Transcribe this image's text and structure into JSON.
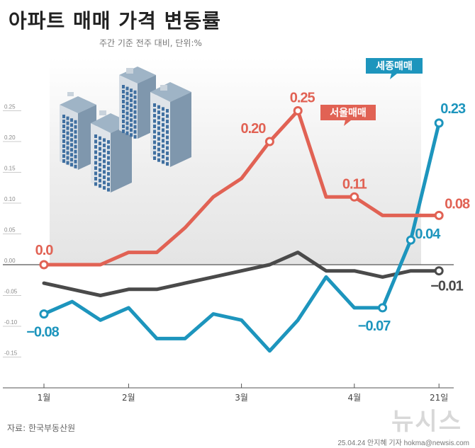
{
  "header": {
    "title": "아파트 매매 가격 변동률",
    "subtitle": "주간 기준 전주 대비, 단위:%"
  },
  "footer": {
    "source": "자료: 한국부동산원",
    "byline": "25.04.24 안지혜 기자 hokma@newsis.com",
    "watermark": "뉴시스"
  },
  "colors": {
    "seoul": "#e16254",
    "sejong": "#1d95bd",
    "national": "#4a4a4a"
  },
  "chart_data": {
    "type": "line",
    "title": "아파트 매매 가격 변동률",
    "subtitle": "주간 기준 전주 대비, 단위:%",
    "x": [
      1,
      2,
      3,
      4,
      5,
      6,
      7,
      8,
      9,
      10,
      11,
      12,
      13,
      14,
      15
    ],
    "x_tick_labels": [
      {
        "x": 1,
        "label": "1월"
      },
      {
        "x": 4,
        "label": "2월"
      },
      {
        "x": 8,
        "label": "3월"
      },
      {
        "x": 12,
        "label": "4월"
      },
      {
        "x": 15,
        "label": "21일"
      }
    ],
    "ylim": [
      -0.15,
      0.25
    ],
    "y_ticks": [
      {
        "value": 0.25,
        "label": "0.25"
      },
      {
        "value": 0.2,
        "label": "0.20"
      },
      {
        "value": 0.15,
        "label": "0.15"
      },
      {
        "value": 0.1,
        "label": "0.10"
      },
      {
        "value": 0.05,
        "label": "0.05"
      },
      {
        "value": 0.0,
        "label": "0.00"
      },
      {
        "value": -0.05,
        "label": "-0.05"
      },
      {
        "value": -0.1,
        "label": "-0.10"
      },
      {
        "value": -0.15,
        "label": "-0.15"
      }
    ],
    "series": [
      {
        "name": "서울매매",
        "color": "#e16254",
        "values": [
          0.0,
          0.0,
          0.0,
          0.02,
          0.02,
          0.06,
          0.11,
          0.14,
          0.2,
          0.25,
          0.11,
          0.11,
          0.08,
          0.08,
          0.08
        ]
      },
      {
        "name": "",
        "color": "#4a4a4a",
        "values": [
          -0.03,
          -0.04,
          -0.05,
          -0.04,
          -0.04,
          -0.03,
          -0.02,
          -0.01,
          0.0,
          0.02,
          -0.01,
          -0.01,
          -0.02,
          -0.01,
          -0.01
        ]
      },
      {
        "name": "세종매매",
        "color": "#1d95bd",
        "values": [
          -0.08,
          -0.06,
          -0.09,
          -0.07,
          -0.12,
          -0.12,
          -0.08,
          -0.09,
          -0.14,
          -0.09,
          -0.02,
          -0.07,
          -0.07,
          0.04,
          0.23
        ]
      }
    ],
    "annotations": [
      {
        "series": 0,
        "index": 0,
        "text": "0.0"
      },
      {
        "series": 0,
        "index": 8,
        "text": "0.20"
      },
      {
        "series": 0,
        "index": 9,
        "text": "0.25"
      },
      {
        "series": 0,
        "index": 11,
        "text": "0.11"
      },
      {
        "series": 0,
        "index": 14,
        "text": "0.08"
      },
      {
        "series": 1,
        "index": 14,
        "text": "−0.01"
      },
      {
        "series": 2,
        "index": 0,
        "text": "−0.08"
      },
      {
        "series": 2,
        "index": 12,
        "text": "−0.07"
      },
      {
        "series": 2,
        "index": 13,
        "text": "0.04"
      },
      {
        "series": 2,
        "index": 14,
        "text": "0.23"
      }
    ],
    "grid": false,
    "legend": "inline labels"
  }
}
